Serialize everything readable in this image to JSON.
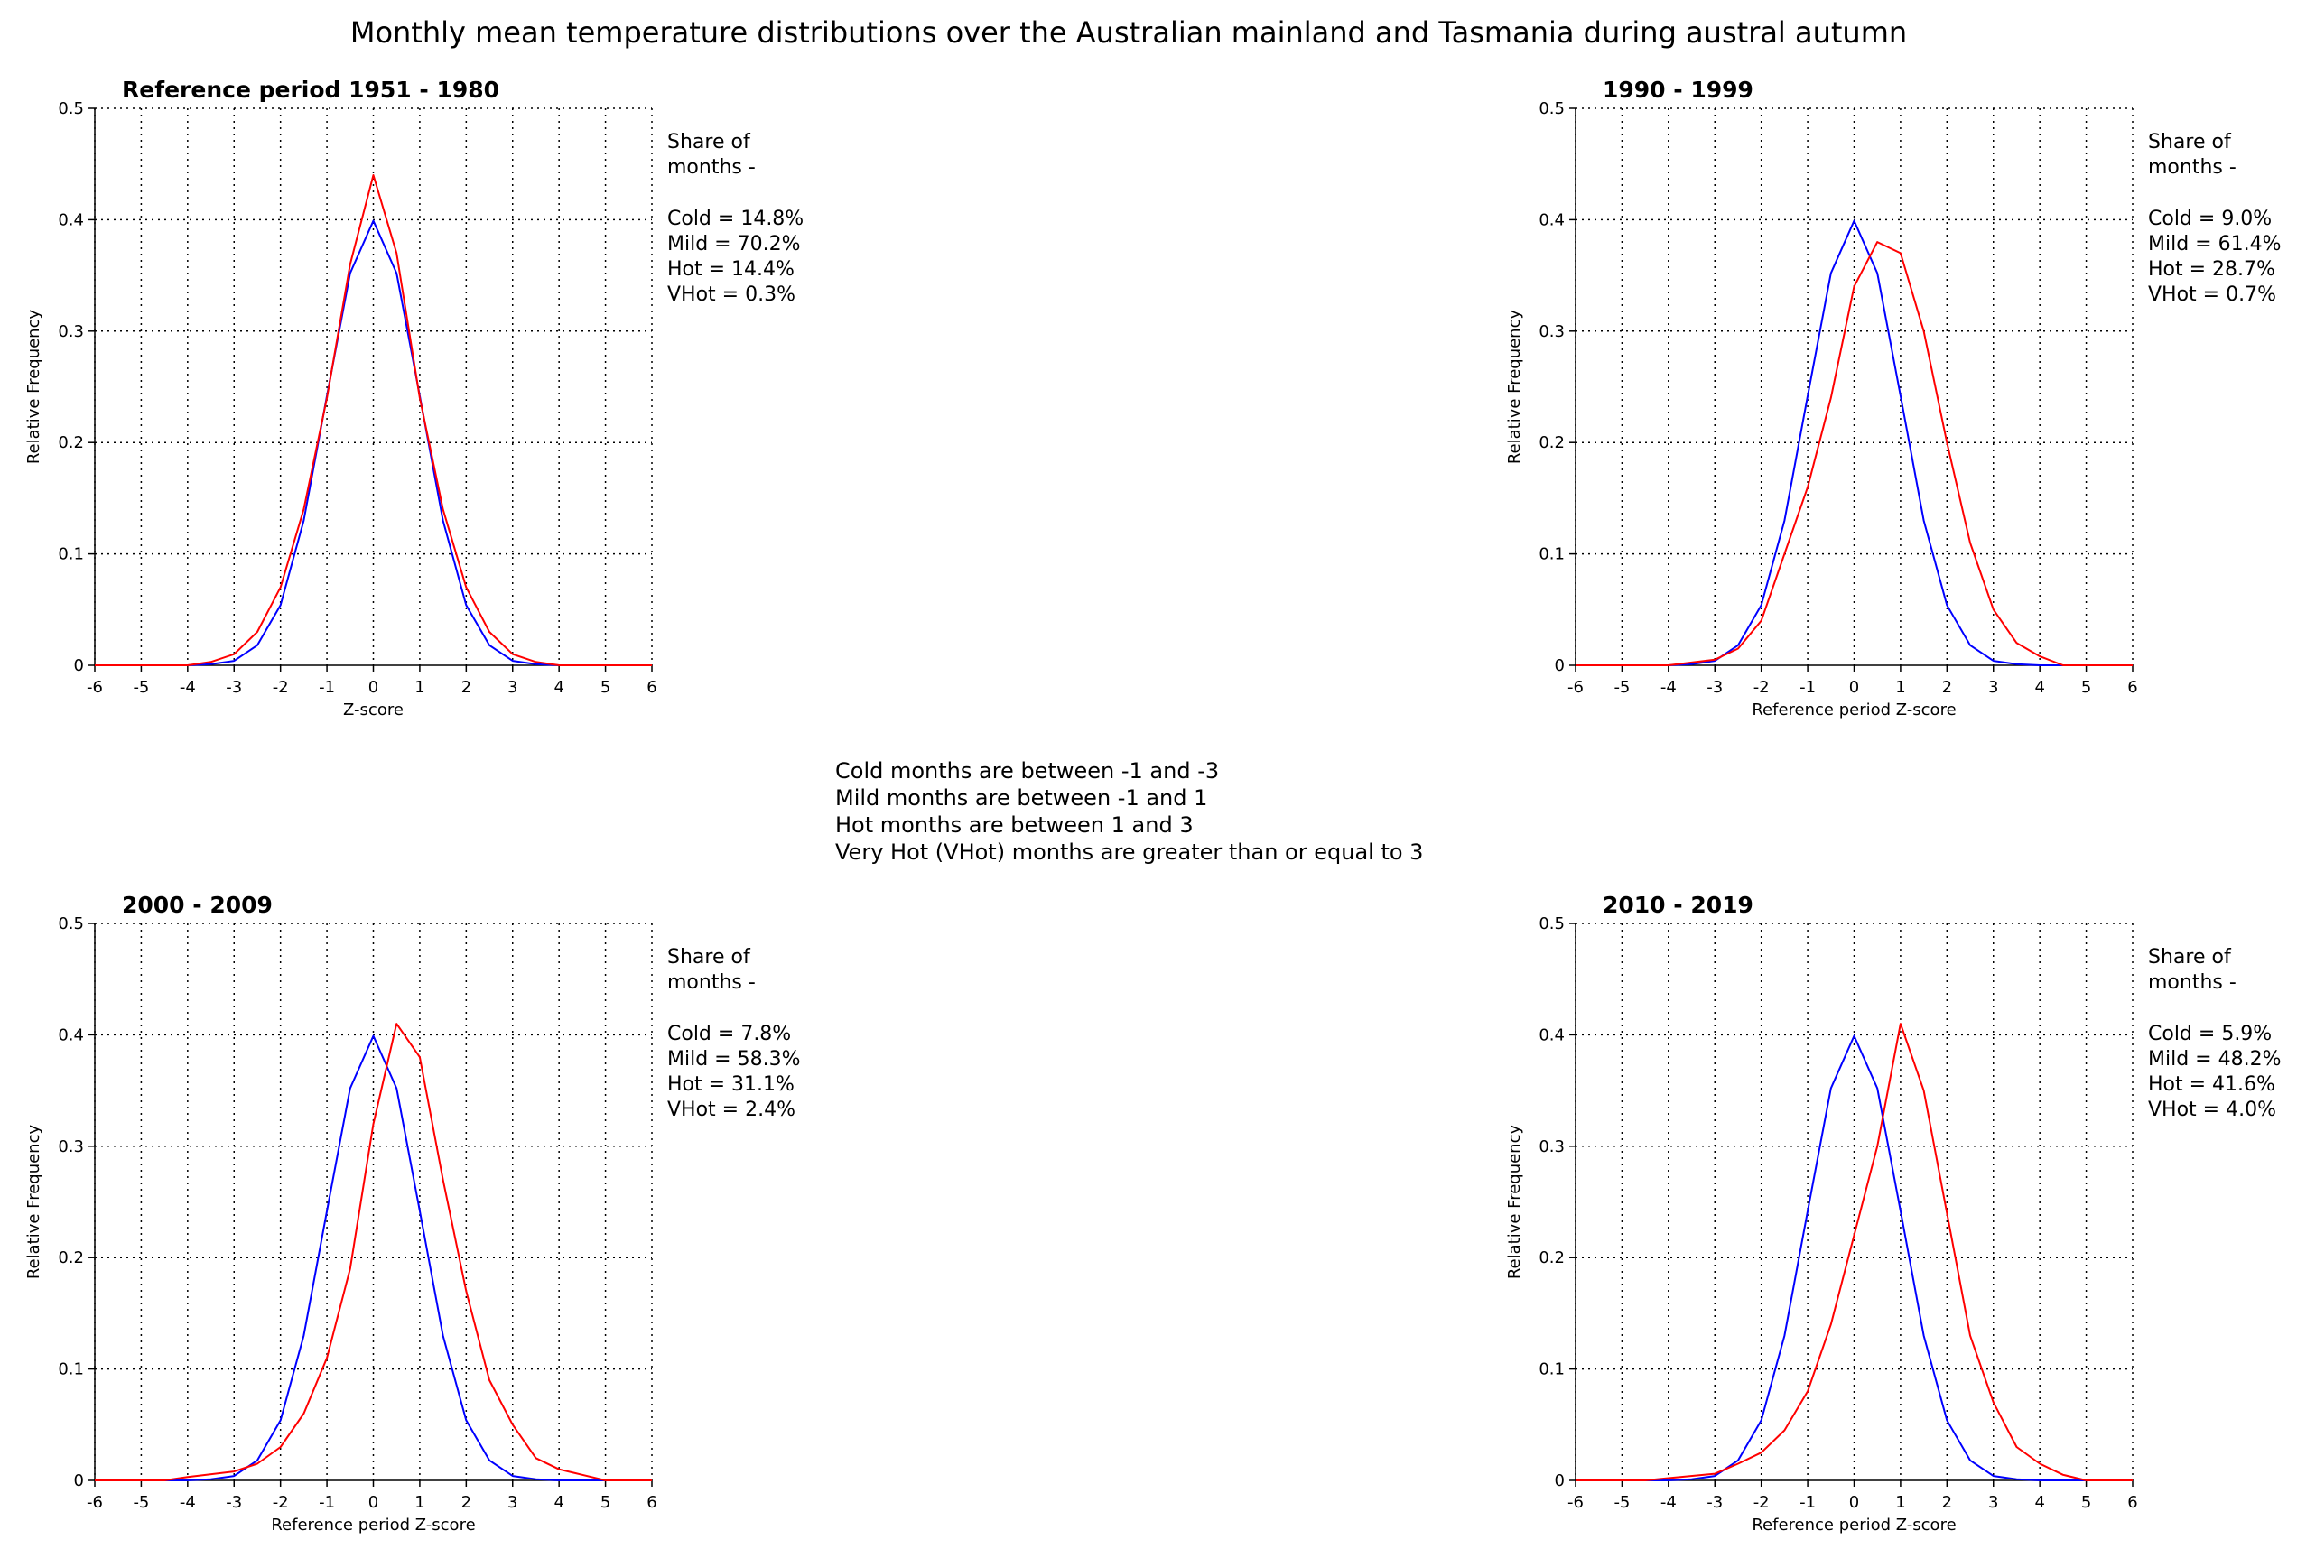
{
  "figure_title": "Monthly mean temperature distributions over the Australian mainland and Tasmania during austral autumn",
  "notes": [
    "Cold months are between -1 and -3",
    "Mild months are between -1 and 1",
    "Hot months are between 1 and 3",
    "Very Hot (VHot) months are greater than or equal to 3"
  ],
  "colors": {
    "reference": "#0000ff",
    "observed": "#ff0000",
    "grid": "#000000",
    "text": "#000000"
  },
  "chart_data": [
    {
      "type": "line",
      "title": "Reference period 1951 - 1980",
      "xlabel": "Z-score",
      "ylabel": "Relative Frequency",
      "xlim": [
        -6,
        6
      ],
      "ylim": [
        0,
        0.5
      ],
      "x_ticks": [
        "-6",
        "-5",
        "-4",
        "-3",
        "-2",
        "-1",
        "0",
        "1",
        "2",
        "3",
        "4",
        "5",
        "6"
      ],
      "y_ticks": [
        "0",
        "0.1",
        "0.2",
        "0.3",
        "0.4",
        "0.5"
      ],
      "grid": true,
      "share_label": [
        "Share of",
        "months -"
      ],
      "shares": [
        "Cold = 14.8%",
        "Mild = 70.2%",
        "Hot = 14.4%",
        "VHot = 0.3%"
      ],
      "series": [
        {
          "role": "reference",
          "x": [
            -6,
            -5,
            -4,
            -3.5,
            -3,
            -2.5,
            -2,
            -1.5,
            -1,
            -0.5,
            0,
            0.5,
            1,
            1.5,
            2,
            2.5,
            3,
            3.5,
            4,
            5,
            6
          ],
          "values": [
            0,
            0,
            0,
            0.001,
            0.004,
            0.018,
            0.054,
            0.13,
            0.242,
            0.352,
            0.399,
            0.352,
            0.242,
            0.13,
            0.054,
            0.018,
            0.004,
            0.001,
            0,
            0,
            0
          ]
        },
        {
          "role": "observed",
          "x": [
            -6,
            -4,
            -3.5,
            -3,
            -2.5,
            -2,
            -1.5,
            -1,
            -0.5,
            0,
            0.5,
            1,
            1.5,
            2,
            2.5,
            3,
            3.5,
            4,
            6
          ],
          "values": [
            0,
            0,
            0.003,
            0.01,
            0.03,
            0.07,
            0.14,
            0.24,
            0.36,
            0.44,
            0.37,
            0.24,
            0.14,
            0.07,
            0.03,
            0.01,
            0.003,
            0,
            0
          ]
        }
      ]
    },
    {
      "type": "line",
      "title": "1990 - 1999",
      "xlabel": "Reference period Z-score",
      "ylabel": "Relative Frequency",
      "xlim": [
        -6,
        6
      ],
      "ylim": [
        0,
        0.5
      ],
      "x_ticks": [
        "-6",
        "-5",
        "-4",
        "-3",
        "-2",
        "-1",
        "0",
        "1",
        "2",
        "3",
        "4",
        "5",
        "6"
      ],
      "y_ticks": [
        "0",
        "0.1",
        "0.2",
        "0.3",
        "0.4",
        "0.5"
      ],
      "grid": true,
      "share_label": [
        "Share of",
        "months -"
      ],
      "shares": [
        "Cold = 9.0%",
        "Mild = 61.4%",
        "Hot = 28.7%",
        "VHot = 0.7%"
      ],
      "series": [
        {
          "role": "reference",
          "x": [
            -6,
            -5,
            -4,
            -3.5,
            -3,
            -2.5,
            -2,
            -1.5,
            -1,
            -0.5,
            0,
            0.5,
            1,
            1.5,
            2,
            2.5,
            3,
            3.5,
            4,
            5,
            6
          ],
          "values": [
            0,
            0,
            0,
            0.001,
            0.004,
            0.018,
            0.054,
            0.13,
            0.242,
            0.352,
            0.399,
            0.352,
            0.242,
            0.13,
            0.054,
            0.018,
            0.004,
            0.001,
            0,
            0,
            0
          ]
        },
        {
          "role": "observed",
          "x": [
            -6,
            -4,
            -3,
            -2.5,
            -2,
            -1.5,
            -1,
            -0.5,
            0,
            0.5,
            1,
            1.5,
            2,
            2.5,
            3,
            3.5,
            4,
            4.5,
            6
          ],
          "values": [
            0,
            0,
            0.005,
            0.015,
            0.04,
            0.1,
            0.16,
            0.24,
            0.34,
            0.38,
            0.37,
            0.3,
            0.2,
            0.11,
            0.05,
            0.02,
            0.008,
            0,
            0
          ]
        }
      ]
    },
    {
      "type": "line",
      "title": "2000 - 2009",
      "xlabel": "Reference period Z-score",
      "ylabel": "Relative Frequency",
      "xlim": [
        -6,
        6
      ],
      "ylim": [
        0,
        0.5
      ],
      "x_ticks": [
        "-6",
        "-5",
        "-4",
        "-3",
        "-2",
        "-1",
        "0",
        "1",
        "2",
        "3",
        "4",
        "5",
        "6"
      ],
      "y_ticks": [
        "0",
        "0.1",
        "0.2",
        "0.3",
        "0.4",
        "0.5"
      ],
      "grid": true,
      "share_label": [
        "Share of",
        "months -"
      ],
      "shares": [
        "Cold = 7.8%",
        "Mild = 58.3%",
        "Hot = 31.1%",
        "VHot = 2.4%"
      ],
      "series": [
        {
          "role": "reference",
          "x": [
            -6,
            -5,
            -4,
            -3.5,
            -3,
            -2.5,
            -2,
            -1.5,
            -1,
            -0.5,
            0,
            0.5,
            1,
            1.5,
            2,
            2.5,
            3,
            3.5,
            4,
            5,
            6
          ],
          "values": [
            0,
            0,
            0,
            0.001,
            0.004,
            0.018,
            0.054,
            0.13,
            0.242,
            0.352,
            0.399,
            0.352,
            0.242,
            0.13,
            0.054,
            0.018,
            0.004,
            0.001,
            0,
            0,
            0
          ]
        },
        {
          "role": "observed",
          "x": [
            -6,
            -4.5,
            -4,
            -3,
            -2.5,
            -2,
            -1.5,
            -1,
            -0.5,
            0,
            0.5,
            1,
            1.5,
            2,
            2.5,
            3,
            3.5,
            4,
            4.5,
            5,
            6
          ],
          "values": [
            0,
            0,
            0.003,
            0.008,
            0.015,
            0.03,
            0.06,
            0.11,
            0.19,
            0.32,
            0.41,
            0.38,
            0.27,
            0.17,
            0.09,
            0.05,
            0.02,
            0.01,
            0.005,
            0,
            0
          ]
        }
      ]
    },
    {
      "type": "line",
      "title": "2010 - 2019",
      "xlabel": "Reference period Z-score",
      "ylabel": "Relative Frequency",
      "xlim": [
        -6,
        6
      ],
      "ylim": [
        0,
        0.5
      ],
      "x_ticks": [
        "-6",
        "-5",
        "-4",
        "-3",
        "-2",
        "-1",
        "0",
        "1",
        "2",
        "3",
        "4",
        "5",
        "6"
      ],
      "y_ticks": [
        "0",
        "0.1",
        "0.2",
        "0.3",
        "0.4",
        "0.5"
      ],
      "grid": true,
      "share_label": [
        "Share of",
        "months -"
      ],
      "shares": [
        "Cold = 5.9%",
        "Mild = 48.2%",
        "Hot = 41.6%",
        "VHot = 4.0%"
      ],
      "series": [
        {
          "role": "reference",
          "x": [
            -6,
            -5,
            -4,
            -3.5,
            -3,
            -2.5,
            -2,
            -1.5,
            -1,
            -0.5,
            0,
            0.5,
            1,
            1.5,
            2,
            2.5,
            3,
            3.5,
            4,
            5,
            6
          ],
          "values": [
            0,
            0,
            0,
            0.001,
            0.004,
            0.018,
            0.054,
            0.13,
            0.242,
            0.352,
            0.399,
            0.352,
            0.242,
            0.13,
            0.054,
            0.018,
            0.004,
            0.001,
            0,
            0,
            0
          ]
        },
        {
          "role": "observed",
          "x": [
            -6,
            -4.5,
            -4,
            -3,
            -2.5,
            -2,
            -1.5,
            -1,
            -0.5,
            0,
            0.5,
            1,
            1.5,
            2,
            2.5,
            3,
            3.5,
            4,
            4.5,
            5,
            6
          ],
          "values": [
            0,
            0,
            0.002,
            0.006,
            0.015,
            0.025,
            0.045,
            0.08,
            0.14,
            0.22,
            0.3,
            0.41,
            0.35,
            0.24,
            0.13,
            0.07,
            0.03,
            0.015,
            0.005,
            0,
            0
          ]
        }
      ]
    }
  ]
}
